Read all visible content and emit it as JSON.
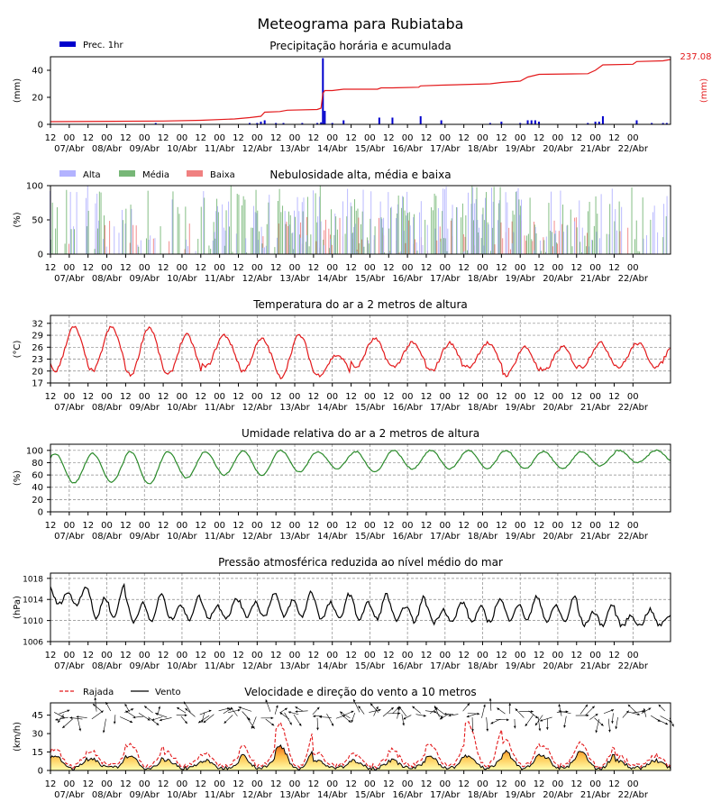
{
  "title": "Meteograma para Rubiataba",
  "colors": {
    "precip_bar": "#0000cc",
    "precip_line": "#e31a1c",
    "cloud_high": "#b3b3ff",
    "cloud_mid": "#77b777",
    "cloud_low": "#f08080",
    "temp": "#e31a1c",
    "humidity": "#2a8a2a",
    "pressure": "#000000",
    "wind": "#000000",
    "gust": "#e31a1c",
    "wind_fill": "#ffc34d"
  },
  "time_axis": {
    "hour_ticks": [
      "12",
      "00",
      "12",
      "00",
      "12",
      "00",
      "12",
      "00",
      "12",
      "00",
      "12",
      "00",
      "12",
      "00",
      "12",
      "00",
      "12",
      "00",
      "12",
      "00",
      "12",
      "00",
      "12",
      "00",
      "12",
      "00",
      "12",
      "00",
      "12",
      "00",
      "12",
      "00"
    ],
    "day_labels": [
      "07/Abr",
      "08/Abr",
      "09/Abr",
      "10/Abr",
      "11/Abr",
      "12/Abr",
      "13/Abr",
      "14/Abr",
      "15/Abr",
      "16/Abr",
      "17/Abr",
      "18/Abr",
      "19/Abr",
      "20/Abr",
      "21/Abr",
      "22/Abr"
    ]
  },
  "chart_data": [
    {
      "type": "bar",
      "title": "Precipitação horária e acumulada",
      "ylabel": "(mm)",
      "ylabel_right": "(mm)",
      "yticks": [
        "0",
        "20",
        "40"
      ],
      "ylim": [
        0,
        50
      ],
      "legend": [
        "Prec. 1hr"
      ],
      "accum_total_label": "237.08",
      "bars": [
        [
          2.3,
          1
        ],
        [
          4.8,
          1
        ],
        [
          5.0,
          1
        ],
        [
          5.1,
          2
        ],
        [
          5.2,
          3
        ],
        [
          5.5,
          1
        ],
        [
          5.7,
          1
        ],
        [
          6.2,
          1
        ],
        [
          6.6,
          1
        ],
        [
          6.7,
          1.5
        ],
        [
          6.75,
          49
        ],
        [
          6.8,
          10
        ],
        [
          7.0,
          1
        ],
        [
          7.3,
          3
        ],
        [
          8.25,
          5
        ],
        [
          8.6,
          5
        ],
        [
          9.35,
          6
        ],
        [
          9.9,
          3
        ],
        [
          11.2,
          1
        ],
        [
          11.5,
          2
        ],
        [
          12.0,
          1
        ],
        [
          12.2,
          3
        ],
        [
          12.3,
          3
        ],
        [
          12.4,
          3
        ],
        [
          12.5,
          2
        ],
        [
          13.8,
          1
        ],
        [
          14.0,
          2
        ],
        [
          14.1,
          2
        ],
        [
          14.2,
          6
        ],
        [
          15.1,
          3
        ],
        [
          15.5,
          1
        ],
        [
          15.8,
          1
        ],
        [
          15.9,
          1
        ]
      ],
      "accum_series": [
        [
          -0.5,
          2
        ],
        [
          2.5,
          2.5
        ],
        [
          3.5,
          3
        ],
        [
          4.4,
          4
        ],
        [
          4.8,
          5
        ],
        [
          5.1,
          6
        ],
        [
          5.2,
          9
        ],
        [
          5.6,
          9.5
        ],
        [
          5.8,
          10.5
        ],
        [
          6.6,
          11
        ],
        [
          6.7,
          12
        ],
        [
          6.75,
          23
        ],
        [
          6.8,
          25
        ],
        [
          7.0,
          25
        ],
        [
          7.3,
          26
        ],
        [
          8.2,
          26
        ],
        [
          8.3,
          27
        ],
        [
          8.6,
          27
        ],
        [
          9.3,
          27.5
        ],
        [
          9.35,
          28.5
        ],
        [
          9.9,
          29
        ],
        [
          11.2,
          30
        ],
        [
          11.5,
          31
        ],
        [
          12.0,
          32
        ],
        [
          12.2,
          35
        ],
        [
          12.5,
          37
        ],
        [
          13.8,
          37.5
        ],
        [
          14.0,
          40
        ],
        [
          14.2,
          44
        ],
        [
          15.0,
          44.5
        ],
        [
          15.1,
          46.5
        ],
        [
          15.8,
          47
        ],
        [
          16.0,
          48
        ]
      ]
    },
    {
      "type": "bar",
      "title": "Nebulosidade alta, média e baixa",
      "ylabel": "(%)",
      "yticks": [
        "0",
        "50",
        "100"
      ],
      "ylim": [
        0,
        100
      ],
      "legend": [
        "Alta",
        "Média",
        "Baixa"
      ]
    },
    {
      "type": "line",
      "title": "Temperatura do ar a 2 metros de altura",
      "ylabel": "(°C)",
      "yticks": [
        "17",
        "20",
        "23",
        "26",
        "29",
        "32"
      ],
      "ylim": [
        17,
        34
      ],
      "series_max": [
        31,
        31,
        31,
        29,
        29,
        28,
        29,
        24,
        28,
        27,
        27,
        27,
        26,
        26,
        27,
        27
      ],
      "series_min": [
        20,
        20,
        19,
        19,
        21,
        20,
        18.5,
        19,
        21,
        21,
        20,
        21,
        19,
        20,
        21,
        21
      ]
    },
    {
      "type": "line",
      "title": "Umidade relativa do ar a 2 metros de altura",
      "ylabel": "(%)",
      "yticks": [
        "0",
        "20",
        "40",
        "60",
        "80",
        "100"
      ],
      "ylim": [
        0,
        110
      ],
      "series_max": [
        95,
        95,
        98,
        98,
        98,
        99,
        100,
        98,
        98,
        100,
        100,
        100,
        100,
        98,
        98,
        100
      ],
      "series_min": [
        47,
        48,
        45,
        55,
        60,
        60,
        65,
        70,
        65,
        70,
        70,
        70,
        70,
        70,
        75,
        80
      ]
    },
    {
      "type": "line",
      "title": "Pressão atmosférica reduzida ao nível médio do mar",
      "ylabel": "(hPa)",
      "yticks": [
        "1006",
        "1010",
        "1014",
        "1018"
      ],
      "ylim": [
        1006,
        1019
      ],
      "series_max": [
        1016.5,
        1016.5,
        1015,
        1014.5,
        1014,
        1015,
        1015.5,
        1015,
        1015,
        1014.5,
        1013.5,
        1014,
        1014.5,
        1014.5,
        1013,
        1012
      ],
      "series_min": [
        1012.5,
        1009.5,
        1009,
        1009.5,
        1010,
        1010,
        1010,
        1009.5,
        1009.5,
        1009,
        1009,
        1009,
        1009.5,
        1009,
        1008.5,
        1008.5
      ]
    },
    {
      "type": "area",
      "title": "Velocidade e direção do vento a 10 metros",
      "ylabel": "(km/h)",
      "yticks": [
        "0",
        "15",
        "30",
        "45"
      ],
      "ylim": [
        0,
        55
      ],
      "legend": [
        "Rajada",
        "Vento"
      ],
      "wind_peaks": [
        12,
        10,
        12,
        8,
        8,
        12,
        20,
        8,
        8,
        8,
        12,
        12,
        15,
        12,
        15,
        8
      ],
      "gust_peaks": [
        16,
        14,
        20,
        12,
        12,
        18,
        36,
        12,
        12,
        14,
        20,
        38,
        22,
        18,
        20,
        10
      ]
    }
  ]
}
